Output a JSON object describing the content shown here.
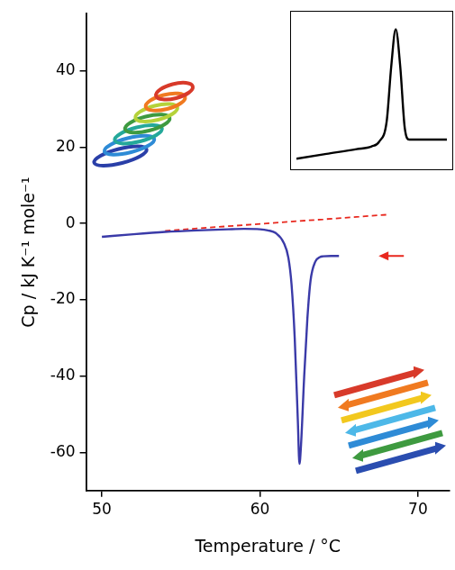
{
  "chart_data": [
    {
      "type": "line",
      "x_label": "Temperature / °C",
      "y_label": "Cp / kJ K⁻¹ mole⁻¹",
      "xlim": [
        49,
        72
      ],
      "xticks": [
        50,
        60,
        70
      ],
      "ylim": [
        -70,
        55
      ],
      "yticks": [
        -60,
        -40,
        -20,
        0,
        20,
        40
      ],
      "grid": false,
      "series": [
        {
          "color": "#3a3aa8",
          "line_style": "solid",
          "x": [
            50,
            52,
            54,
            56,
            58,
            59,
            60,
            60.5,
            61,
            61.5,
            61.8,
            62,
            62.2,
            62.4,
            62.5,
            62.6,
            62.8,
            63,
            63.2,
            63.5,
            63.8,
            64,
            64.5,
            65
          ],
          "values": [
            -3.5,
            -2.8,
            -2.2,
            -1.8,
            -1.5,
            -1.4,
            -1.5,
            -1.8,
            -2.5,
            -5,
            -9,
            -16,
            -30,
            -52,
            -63,
            -58,
            -40,
            -25,
            -15,
            -10,
            -8.8,
            -8.6,
            -8.5,
            -8.5
          ]
        },
        {
          "color": "#e8281e",
          "line_style": "dashed",
          "x": [
            54,
            68
          ],
          "values": [
            -1.9,
            2.3
          ]
        }
      ]
    },
    {
      "type": "line",
      "xlim": [
        0,
        10
      ],
      "ylim": [
        0,
        21
      ],
      "grid": false,
      "tick_labels": false,
      "series": [
        {
          "color": "#000000",
          "line_style": "solid",
          "x": [
            0,
            2,
            4,
            5,
            5.5,
            6,
            6.3,
            6.6,
            6.9,
            7.2,
            7.5,
            8,
            10
          ],
          "values": [
            0.5,
            1.2,
            1.9,
            2.3,
            3,
            6,
            14,
            19.5,
            14,
            5,
            3.3,
            3.3,
            3.3
          ]
        }
      ]
    }
  ]
}
